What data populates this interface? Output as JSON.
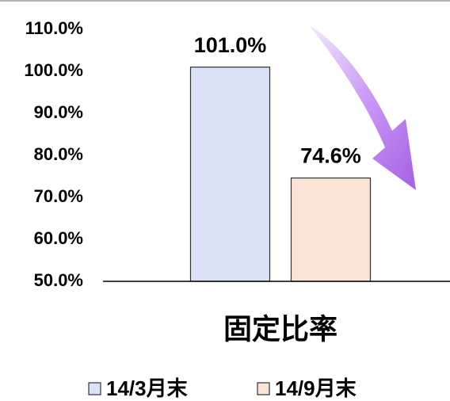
{
  "chart_data": {
    "type": "bar",
    "categories": [
      "固定比率"
    ],
    "series": [
      {
        "name": "14/3月末",
        "color": "#d9e3f5",
        "values": [
          101.0
        ],
        "value_labels": [
          "101.0%"
        ]
      },
      {
        "name": "14/9月末",
        "color": "#fbe3d6",
        "values": [
          74.6
        ],
        "value_labels": [
          "74.6%"
        ]
      }
    ],
    "ylim": [
      50,
      110
    ],
    "yticks": [
      {
        "value": 50,
        "label": "50.0%"
      },
      {
        "value": 60,
        "label": "60.0%"
      },
      {
        "value": 70,
        "label": "70.0%"
      },
      {
        "value": 80,
        "label": "80.0%"
      },
      {
        "value": 90,
        "label": "90.0%"
      },
      {
        "value": 100,
        "label": "100.0%"
      },
      {
        "value": 110,
        "label": "110.0%"
      }
    ],
    "grid": false,
    "legend": "bottom"
  }
}
